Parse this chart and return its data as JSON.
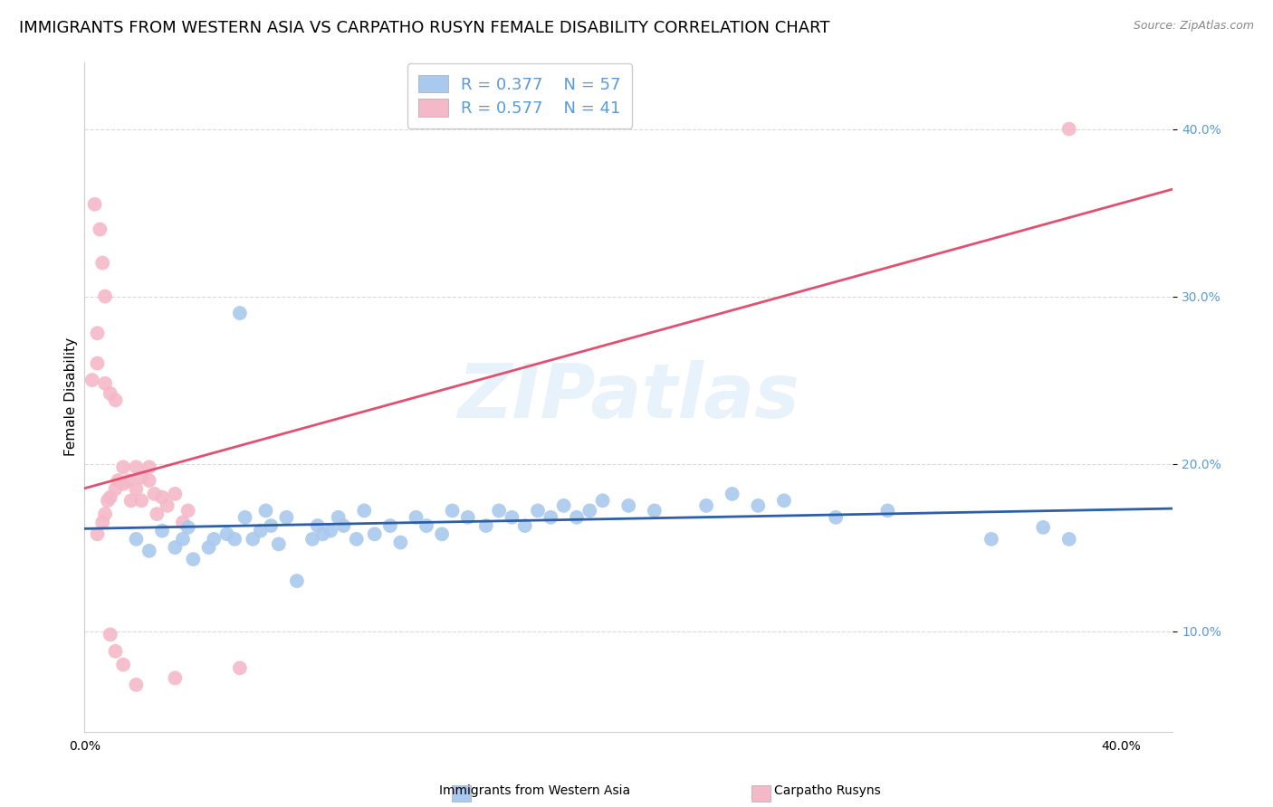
{
  "title": "IMMIGRANTS FROM WESTERN ASIA VS CARPATHO RUSYN FEMALE DISABILITY CORRELATION CHART",
  "source": "Source: ZipAtlas.com",
  "ylabel": "Female Disability",
  "xlim": [
    0.0,
    0.42
  ],
  "ylim": [
    0.04,
    0.44
  ],
  "yticks": [
    0.1,
    0.2,
    0.3,
    0.4
  ],
  "ytick_labels": [
    "10.0%",
    "20.0%",
    "30.0%",
    "40.0%"
  ],
  "blue_color": "#aac9ee",
  "pink_color": "#f4b8c8",
  "blue_line_color": "#2d5fa8",
  "pink_line_color": "#e05070",
  "blue_scatter": [
    [
      0.02,
      0.155
    ],
    [
      0.025,
      0.148
    ],
    [
      0.03,
      0.16
    ],
    [
      0.035,
      0.15
    ],
    [
      0.038,
      0.155
    ],
    [
      0.04,
      0.162
    ],
    [
      0.042,
      0.143
    ],
    [
      0.048,
      0.15
    ],
    [
      0.05,
      0.155
    ],
    [
      0.055,
      0.158
    ],
    [
      0.058,
      0.155
    ],
    [
      0.062,
      0.168
    ],
    [
      0.065,
      0.155
    ],
    [
      0.068,
      0.16
    ],
    [
      0.07,
      0.172
    ],
    [
      0.072,
      0.163
    ],
    [
      0.075,
      0.152
    ],
    [
      0.078,
      0.168
    ],
    [
      0.082,
      0.13
    ],
    [
      0.088,
      0.155
    ],
    [
      0.09,
      0.163
    ],
    [
      0.092,
      0.158
    ],
    [
      0.095,
      0.16
    ],
    [
      0.098,
      0.168
    ],
    [
      0.1,
      0.163
    ],
    [
      0.105,
      0.155
    ],
    [
      0.108,
      0.172
    ],
    [
      0.112,
      0.158
    ],
    [
      0.118,
      0.163
    ],
    [
      0.122,
      0.153
    ],
    [
      0.128,
      0.168
    ],
    [
      0.132,
      0.163
    ],
    [
      0.138,
      0.158
    ],
    [
      0.142,
      0.172
    ],
    [
      0.148,
      0.168
    ],
    [
      0.155,
      0.163
    ],
    [
      0.16,
      0.172
    ],
    [
      0.165,
      0.168
    ],
    [
      0.17,
      0.163
    ],
    [
      0.175,
      0.172
    ],
    [
      0.18,
      0.168
    ],
    [
      0.185,
      0.175
    ],
    [
      0.19,
      0.168
    ],
    [
      0.195,
      0.172
    ],
    [
      0.2,
      0.178
    ],
    [
      0.21,
      0.175
    ],
    [
      0.22,
      0.172
    ],
    [
      0.24,
      0.175
    ],
    [
      0.25,
      0.182
    ],
    [
      0.26,
      0.175
    ],
    [
      0.27,
      0.178
    ],
    [
      0.06,
      0.29
    ],
    [
      0.29,
      0.168
    ],
    [
      0.31,
      0.172
    ],
    [
      0.35,
      0.155
    ],
    [
      0.37,
      0.162
    ],
    [
      0.38,
      0.155
    ]
  ],
  "pink_scatter": [
    [
      0.005,
      0.158
    ],
    [
      0.007,
      0.165
    ],
    [
      0.008,
      0.17
    ],
    [
      0.009,
      0.178
    ],
    [
      0.01,
      0.18
    ],
    [
      0.012,
      0.185
    ],
    [
      0.013,
      0.19
    ],
    [
      0.015,
      0.188
    ],
    [
      0.015,
      0.198
    ],
    [
      0.017,
      0.19
    ],
    [
      0.018,
      0.178
    ],
    [
      0.02,
      0.185
    ],
    [
      0.02,
      0.198
    ],
    [
      0.022,
      0.192
    ],
    [
      0.022,
      0.178
    ],
    [
      0.025,
      0.19
    ],
    [
      0.025,
      0.198
    ],
    [
      0.027,
      0.182
    ],
    [
      0.028,
      0.17
    ],
    [
      0.03,
      0.18
    ],
    [
      0.032,
      0.175
    ],
    [
      0.035,
      0.182
    ],
    [
      0.038,
      0.165
    ],
    [
      0.04,
      0.172
    ],
    [
      0.003,
      0.25
    ],
    [
      0.005,
      0.26
    ],
    [
      0.008,
      0.248
    ],
    [
      0.01,
      0.242
    ],
    [
      0.012,
      0.238
    ],
    [
      0.004,
      0.355
    ],
    [
      0.006,
      0.34
    ],
    [
      0.007,
      0.32
    ],
    [
      0.008,
      0.3
    ],
    [
      0.005,
      0.278
    ],
    [
      0.01,
      0.098
    ],
    [
      0.012,
      0.088
    ],
    [
      0.035,
      0.072
    ],
    [
      0.06,
      0.078
    ],
    [
      0.015,
      0.08
    ],
    [
      0.38,
      0.4
    ],
    [
      0.02,
      0.068
    ]
  ],
  "watermark": "ZIPatlas",
  "background_color": "#ffffff",
  "grid_color": "#d0d0d0",
  "title_fontsize": 13,
  "axis_label_fontsize": 11,
  "tick_fontsize": 10,
  "legend_fontsize": 13
}
